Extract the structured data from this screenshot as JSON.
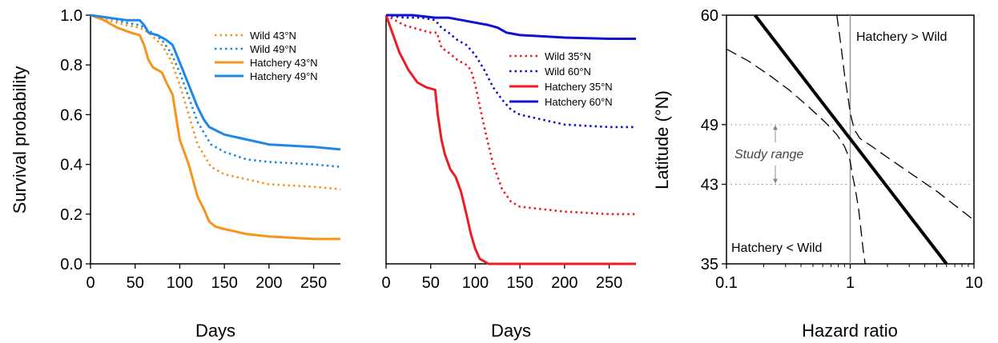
{
  "chart_data": [
    {
      "type": "line",
      "title": "",
      "xlabel": "Days",
      "ylabel": "Survival probability",
      "xlim": [
        0,
        280
      ],
      "ylim": [
        0,
        1
      ],
      "xticks": [
        0,
        50,
        100,
        150,
        200,
        250
      ],
      "yticks": [
        "0.0",
        "0.2",
        "0.4",
        "0.6",
        "0.8",
        "1.0"
      ],
      "legend_position": "top-right",
      "series": [
        {
          "name": "Wild 43°N",
          "color": "#F7941D",
          "style": "dotted",
          "x": [
            0,
            20,
            40,
            55,
            65,
            80,
            90,
            100,
            110,
            120,
            135,
            150,
            175,
            200,
            250,
            280
          ],
          "y": [
            1.0,
            0.98,
            0.96,
            0.95,
            0.93,
            0.88,
            0.82,
            0.72,
            0.6,
            0.48,
            0.39,
            0.36,
            0.34,
            0.32,
            0.31,
            0.3
          ]
        },
        {
          "name": "Wild 49°N",
          "color": "#1E88E5",
          "style": "dotted",
          "x": [
            0,
            20,
            40,
            55,
            65,
            80,
            90,
            100,
            110,
            120,
            135,
            150,
            175,
            200,
            250,
            280
          ],
          "y": [
            1.0,
            0.99,
            0.97,
            0.96,
            0.94,
            0.9,
            0.85,
            0.77,
            0.67,
            0.57,
            0.48,
            0.45,
            0.42,
            0.41,
            0.4,
            0.39
          ]
        },
        {
          "name": "Hatchery 43°N",
          "color": "#F7941D",
          "style": "solid",
          "x": [
            0,
            15,
            30,
            45,
            55,
            60,
            65,
            70,
            80,
            85,
            92,
            100,
            110,
            120,
            127,
            133,
            140,
            150,
            175,
            200,
            250,
            280
          ],
          "y": [
            1.0,
            0.98,
            0.95,
            0.93,
            0.92,
            0.88,
            0.82,
            0.79,
            0.77,
            0.73,
            0.68,
            0.5,
            0.4,
            0.27,
            0.22,
            0.17,
            0.15,
            0.14,
            0.12,
            0.11,
            0.1,
            0.1
          ]
        },
        {
          "name": "Hatchery 49°N",
          "color": "#1E88E5",
          "style": "solid",
          "x": [
            0,
            20,
            40,
            55,
            60,
            65,
            75,
            85,
            92,
            100,
            110,
            120,
            127,
            133,
            150,
            175,
            200,
            250,
            280
          ],
          "y": [
            1.0,
            0.99,
            0.98,
            0.98,
            0.96,
            0.93,
            0.92,
            0.9,
            0.88,
            0.81,
            0.72,
            0.63,
            0.58,
            0.55,
            0.52,
            0.5,
            0.48,
            0.47,
            0.46
          ]
        }
      ]
    },
    {
      "type": "line",
      "title": "",
      "xlabel": "Days",
      "ylabel": "",
      "xlim": [
        0,
        280
      ],
      "ylim": [
        0,
        1
      ],
      "xticks": [
        0,
        50,
        100,
        150,
        200,
        250
      ],
      "yticks": [],
      "legend_position": "top-right",
      "series": [
        {
          "name": "Wild 35°N",
          "color": "#EE1C25",
          "style": "dotted",
          "x": [
            0,
            10,
            20,
            30,
            40,
            50,
            57,
            62,
            70,
            80,
            90,
            95,
            100,
            110,
            120,
            130,
            140,
            150,
            175,
            200,
            250,
            280
          ],
          "y": [
            1.0,
            0.98,
            0.96,
            0.95,
            0.94,
            0.93,
            0.93,
            0.87,
            0.85,
            0.82,
            0.8,
            0.78,
            0.72,
            0.55,
            0.4,
            0.3,
            0.25,
            0.23,
            0.22,
            0.21,
            0.2,
            0.2
          ]
        },
        {
          "name": "Wild 60°N",
          "color": "#1010D0",
          "style": "dotted",
          "x": [
            0,
            20,
            40,
            55,
            62,
            70,
            80,
            90,
            100,
            110,
            120,
            130,
            140,
            150,
            175,
            200,
            250,
            280
          ],
          "y": [
            1.0,
            0.99,
            0.99,
            0.98,
            0.95,
            0.93,
            0.9,
            0.88,
            0.84,
            0.78,
            0.71,
            0.66,
            0.62,
            0.6,
            0.58,
            0.56,
            0.55,
            0.55
          ]
        },
        {
          "name": "Hatchery 35°N",
          "color": "#EE1C25",
          "style": "solid",
          "x": [
            0,
            5,
            15,
            25,
            35,
            45,
            55,
            58,
            62,
            66,
            72,
            78,
            84,
            90,
            95,
            100,
            105,
            110,
            115,
            120,
            140,
            200,
            280
          ],
          "y": [
            1.0,
            0.95,
            0.85,
            0.78,
            0.73,
            0.71,
            0.7,
            0.6,
            0.5,
            0.44,
            0.38,
            0.35,
            0.29,
            0.2,
            0.12,
            0.06,
            0.02,
            0.01,
            0.0,
            0.0,
            0.0,
            0.0,
            0.0
          ]
        },
        {
          "name": "Hatchery 60°N",
          "color": "#1010D0",
          "style": "solid",
          "x": [
            0,
            30,
            55,
            70,
            85,
            100,
            115,
            125,
            135,
            150,
            175,
            200,
            250,
            280
          ],
          "y": [
            1.0,
            1.0,
            0.99,
            0.99,
            0.98,
            0.97,
            0.96,
            0.95,
            0.93,
            0.92,
            0.915,
            0.91,
            0.905,
            0.905
          ]
        }
      ]
    },
    {
      "type": "line",
      "title": "",
      "xlabel": "Hazard ratio",
      "ylabel": "Latitude (°N)",
      "xscale": "log",
      "xlim": [
        0.1,
        10
      ],
      "ylim": [
        35,
        60
      ],
      "xticks": [
        "0.1",
        "1",
        "10"
      ],
      "yticks": [
        "35",
        "43",
        "49",
        "60"
      ],
      "reference_lines": {
        "vertical_x": 1,
        "horizontal_y": [
          43,
          49
        ]
      },
      "annotations": {
        "upper_right": "Hatchery > Wild",
        "lower_left": "Hatchery < Wild",
        "study_range": "Study range"
      },
      "series": [
        {
          "role": "estimate",
          "style": "solid-bold",
          "color": "#000000",
          "x": [
            0.17,
            6.0
          ],
          "y": [
            60,
            35
          ]
        },
        {
          "role": "confidence-band-upper-left",
          "style": "dashed",
          "color": "#000000",
          "x": [
            0.1,
            0.15,
            0.22,
            0.32,
            0.45,
            0.62,
            0.78,
            0.9,
            0.97,
            1.0,
            1.04,
            1.1,
            1.17,
            1.22,
            1.27,
            1.32
          ],
          "y": [
            56.6,
            55.4,
            54.0,
            52.5,
            50.9,
            49.3,
            48.0,
            46.8,
            45.8,
            45.3,
            44.0,
            42.5,
            40.5,
            38.5,
            36.5,
            35.0
          ]
        },
        {
          "role": "confidence-band-lower-right",
          "style": "dashed",
          "color": "#000000",
          "x": [
            0.78,
            0.82,
            0.86,
            0.9,
            0.94,
            0.98,
            1.0,
            1.03,
            1.08,
            1.2,
            1.5,
            2.0,
            3.0,
            5.0,
            10.0
          ],
          "y": [
            60.0,
            58.0,
            56.0,
            54.0,
            52.5,
            51.0,
            50.2,
            49.5,
            48.5,
            47.6,
            46.8,
            45.7,
            44.2,
            42.3,
            39.4
          ]
        }
      ]
    }
  ]
}
